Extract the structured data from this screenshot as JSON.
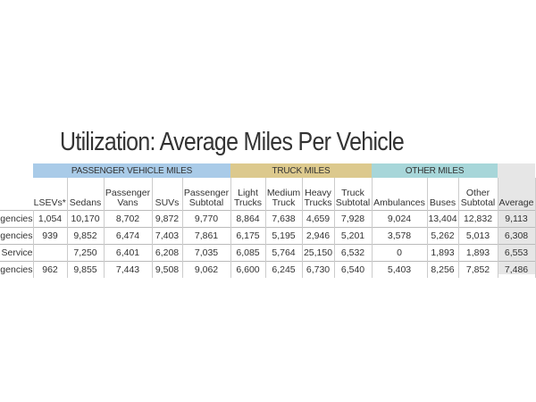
{
  "title": "Utilization: Average Miles Per Vehicle",
  "groups": [
    "PASSENGER VEHICLE MILES",
    "TRUCK MILES",
    "OTHER MILES"
  ],
  "columns": [
    "LSEVs*",
    "Sedans",
    "Passenger Vans",
    "SUVs",
    "Passenger Subtotal",
    "Light Trucks",
    "Medium Truck",
    "Heavy Trucks",
    "Truck Subtotal",
    "Ambulances",
    "Buses",
    "Other Subtotal",
    "Average"
  ],
  "rows": [
    {
      "label": "gencies",
      "values": [
        "1,054",
        "10,170",
        "8,702",
        "9,872",
        "9,770",
        "8,864",
        "7,638",
        "4,659",
        "7,928",
        "9,024",
        "13,404",
        "12,832",
        "9,113"
      ]
    },
    {
      "label": "gencies",
      "values": [
        "939",
        "9,852",
        "6,474",
        "7,403",
        "7,861",
        "6,175",
        "5,195",
        "2,946",
        "5,201",
        "3,578",
        "5,262",
        "5,013",
        "6,308"
      ]
    },
    {
      "label": "Service",
      "values": [
        "",
        "7,250",
        "6,401",
        "6,208",
        "7,035",
        "6,085",
        "5,764",
        "25,150",
        "6,532",
        "0",
        "1,893",
        "1,893",
        "6,553"
      ]
    },
    {
      "label": "gencies",
      "values": [
        "962",
        "9,855",
        "7,443",
        "9,508",
        "9,062",
        "6,600",
        "6,245",
        "6,730",
        "6,540",
        "5,403",
        "8,256",
        "7,852",
        "7,486"
      ]
    }
  ],
  "colors": {
    "passenger": "#a9cbe8",
    "truck": "#dcc98d",
    "other": "#a7d6d9",
    "average": "#e6e6e6"
  }
}
